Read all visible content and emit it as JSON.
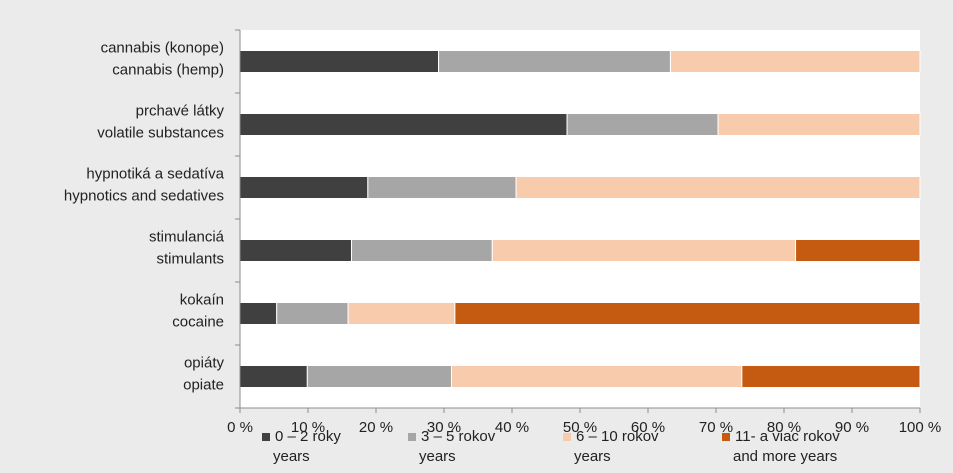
{
  "chart_data": {
    "type": "bar",
    "orientation": "horizontal",
    "stacked": true,
    "categories": [
      [
        "cannabis (konope)",
        "cannabis (hemp)"
      ],
      [
        "prchavé látky",
        "volatile substances"
      ],
      [
        "hypnotiká a sedatíva",
        "hypnotics and sedatives"
      ],
      [
        "stimulanciá",
        "stimulants"
      ],
      [
        "kokaín",
        "cocaine"
      ],
      [
        "opiáty",
        "opiate"
      ]
    ],
    "series": [
      {
        "name": [
          "0 – 2 roky",
          "years"
        ],
        "color": "#404040",
        "values": [
          29.2,
          48.1,
          18.8,
          16.4,
          5.4,
          9.9
        ]
      },
      {
        "name": [
          "3 – 5 rokov",
          "years"
        ],
        "color": "#a6a6a6",
        "values": [
          34.1,
          22.2,
          21.8,
          20.7,
          10.5,
          21.2
        ]
      },
      {
        "name": [
          "6 – 10 rokov",
          "years"
        ],
        "color": "#f8cbad",
        "values": [
          36.7,
          29.7,
          59.4,
          44.6,
          15.7,
          42.7
        ]
      },
      {
        "name": [
          "11- a viac rokov",
          "and more years"
        ],
        "color": "#c55a11",
        "values": [
          0,
          0,
          0,
          18.3,
          68.4,
          26.2
        ]
      }
    ],
    "x_ticks": [
      "0 %",
      "10 %",
      "20 %",
      "30 %",
      "40 %",
      "50 %",
      "60 %",
      "70 %",
      "80 %",
      "90 %",
      "100 %"
    ],
    "xlim": [
      0,
      100
    ],
    "grid": false,
    "legend_position": "bottom"
  }
}
